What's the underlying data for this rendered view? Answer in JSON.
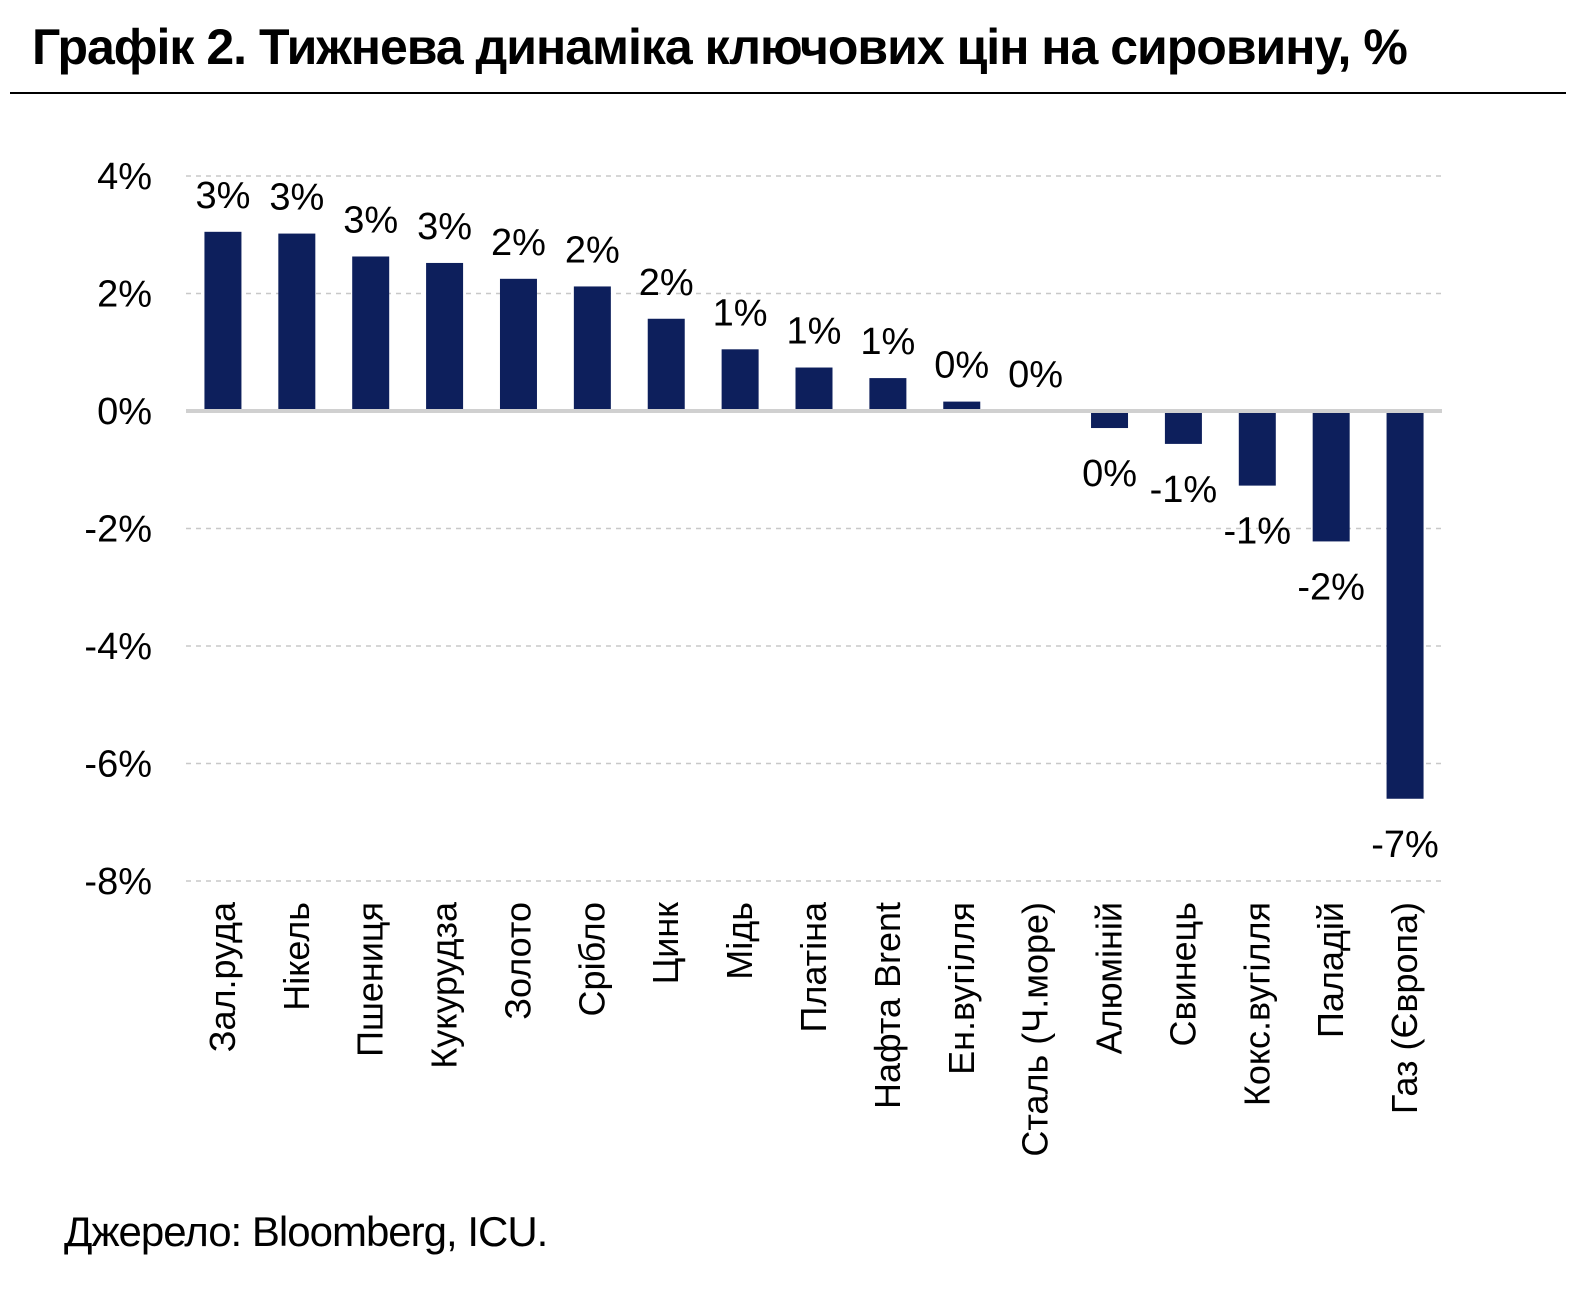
{
  "title": "Графік 2. Тижнева динаміка ключових цін на сировину, %",
  "source": "Джерело: Bloomberg, ICU.",
  "colors": {
    "bar": "#0d1f5c",
    "grid": "#c8c8c8",
    "zero_line": "#d0d0d0"
  },
  "chart_data": {
    "type": "bar",
    "categories": [
      "Зал.руда",
      "Нікель",
      "Пшениця",
      "Кукурудза",
      "Золото",
      "Срібло",
      "Цинк",
      "Мідь",
      "Платіна",
      "Нафта Brent",
      "Ен.вугілля",
      "Сталь (Ч.море)",
      "Алюміній",
      "Свинець",
      "Кокс.вугілля",
      "Паладій",
      "Газ (Європа)"
    ],
    "values": [
      3.05,
      3.02,
      2.63,
      2.52,
      2.25,
      2.12,
      1.57,
      1.05,
      0.74,
      0.56,
      0.16,
      0.0,
      -0.29,
      -0.56,
      -1.27,
      -2.22,
      -6.6
    ],
    "data_labels": [
      "3%",
      "3%",
      "3%",
      "3%",
      "2%",
      "2%",
      "2%",
      "1%",
      "1%",
      "1%",
      "0%",
      "0%",
      "0%",
      "-1%",
      "-1%",
      "-2%",
      "-7%"
    ],
    "ylim": [
      -8,
      4
    ],
    "yticks": [
      4,
      2,
      0,
      -2,
      -4,
      -6,
      -8
    ],
    "ytick_labels": [
      "4%",
      "2%",
      "0%",
      "-2%",
      "-4%",
      "-6%",
      "-8%"
    ],
    "grid": true,
    "legend": "none",
    "xlabel": "",
    "ylabel": ""
  }
}
